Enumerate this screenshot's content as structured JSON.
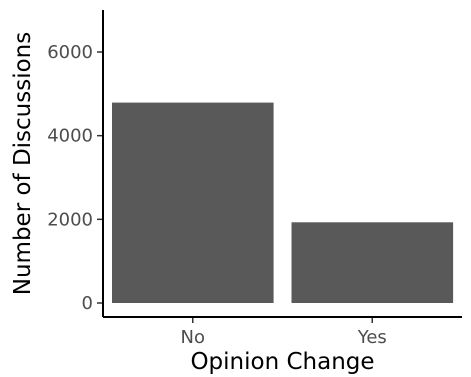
{
  "chart_data": {
    "type": "bar",
    "title": "",
    "xlabel": "Opinion Change",
    "ylabel": "Number of Discussions",
    "categories": [
      "No",
      "Yes"
    ],
    "values": [
      4790,
      1930
    ],
    "ylim": [
      0,
      6900
    ],
    "yticks": [
      0,
      2000,
      4000,
      6000
    ],
    "ytick_labels": [
      "0",
      "2000",
      "4000",
      "6000"
    ],
    "grid": false,
    "legend": "none",
    "bar_color": "#595959",
    "axis_color": "#000000",
    "tick_label_color": "#4d4d4d"
  }
}
